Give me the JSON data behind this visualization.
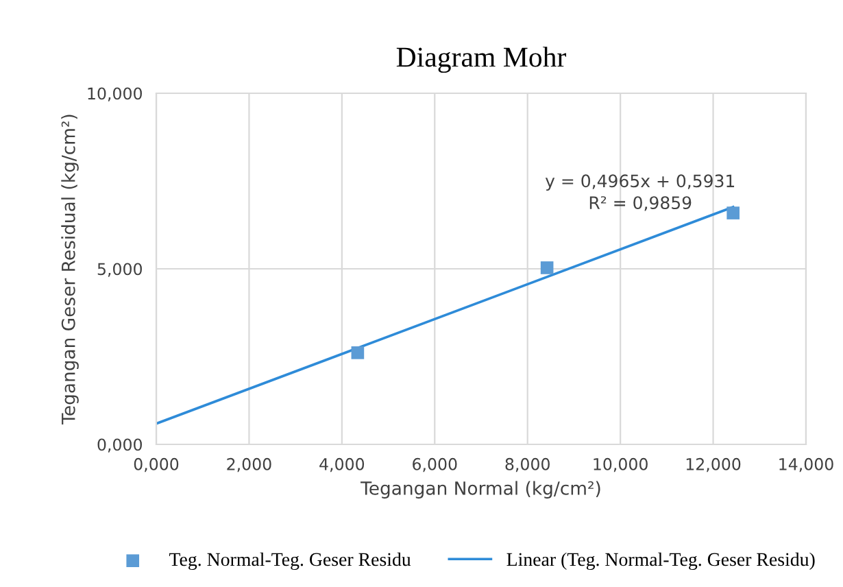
{
  "chart_data": {
    "type": "scatter",
    "title": "Diagram Mohr",
    "xlabel": "Tegangan Normal (kg/cm²)",
    "ylabel": "Tegangan Geser Residual (kg/cm²)",
    "xlim": [
      0,
      14
    ],
    "ylim": [
      0,
      10
    ],
    "xticks": [
      {
        "value": 0,
        "label": "0,000"
      },
      {
        "value": 2,
        "label": "2,000"
      },
      {
        "value": 4,
        "label": "4,000"
      },
      {
        "value": 6,
        "label": "6,000"
      },
      {
        "value": 8,
        "label": "8,000"
      },
      {
        "value": 10,
        "label": "10,000"
      },
      {
        "value": 12,
        "label": "12,000"
      },
      {
        "value": 14,
        "label": "14,000"
      }
    ],
    "yticks": [
      {
        "value": 0,
        "label": "0,000"
      },
      {
        "value": 5,
        "label": "5,000"
      },
      {
        "value": 10,
        "label": "10,000"
      }
    ],
    "grid": true,
    "legend": "bottom",
    "series": [
      {
        "name": "Teg. Normal-Teg. Geser Residu",
        "marker": "square",
        "color": "#5b9bd5",
        "x": [
          4.34,
          8.42,
          12.43
        ],
        "values": [
          2.61,
          5.03,
          6.59
        ]
      },
      {
        "name": "Linear (Teg. Normal-Teg. Geser Residu)",
        "type": "line",
        "color": "#2e8bd8",
        "line_style": "solid",
        "x": [
          0,
          12.43
        ],
        "values": [
          0.59,
          6.76
        ]
      }
    ],
    "annotations": [
      "y = 0,4965x + 0,5931\nR² = 0,9859"
    ]
  }
}
